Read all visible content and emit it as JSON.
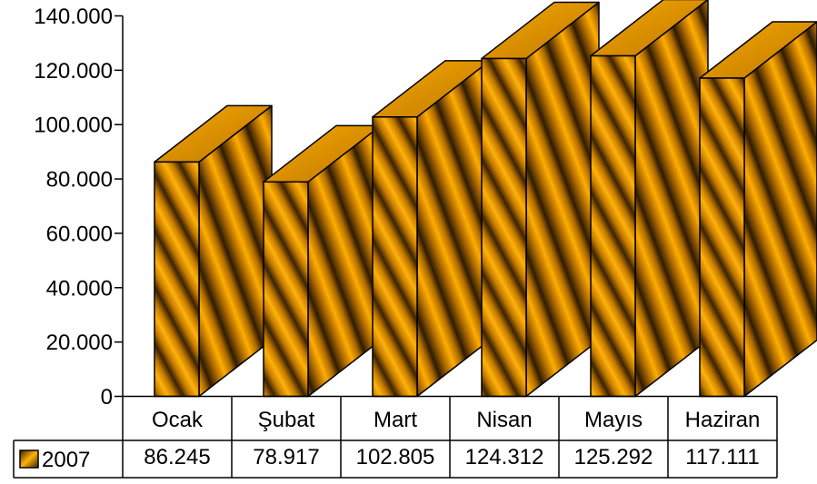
{
  "chart_data": {
    "type": "bar",
    "style": "3d-bar-with-data-table",
    "categories": [
      "Ocak",
      "Şubat",
      "Mart",
      "Nisan",
      "Mayıs",
      "Haziran"
    ],
    "series": [
      {
        "name": "2007",
        "values": [
          86245,
          78917,
          102805,
          124312,
          125292,
          117111
        ],
        "labels": [
          "86.245",
          "78.917",
          "102.805",
          "124.312",
          "125.292",
          "117.111"
        ]
      }
    ],
    "y_ticks": [
      "0",
      "20.000",
      "40.000",
      "60.000",
      "80.000",
      "100.000",
      "120.000",
      "140.000"
    ],
    "ylim": [
      0,
      140000
    ],
    "grid": false,
    "legend": "data-table",
    "colors": {
      "bar_light": "#ffb20a",
      "bar_dark": "#3a2200",
      "bar_mid": "#c47a00",
      "top_face": "#e89a00"
    }
  }
}
